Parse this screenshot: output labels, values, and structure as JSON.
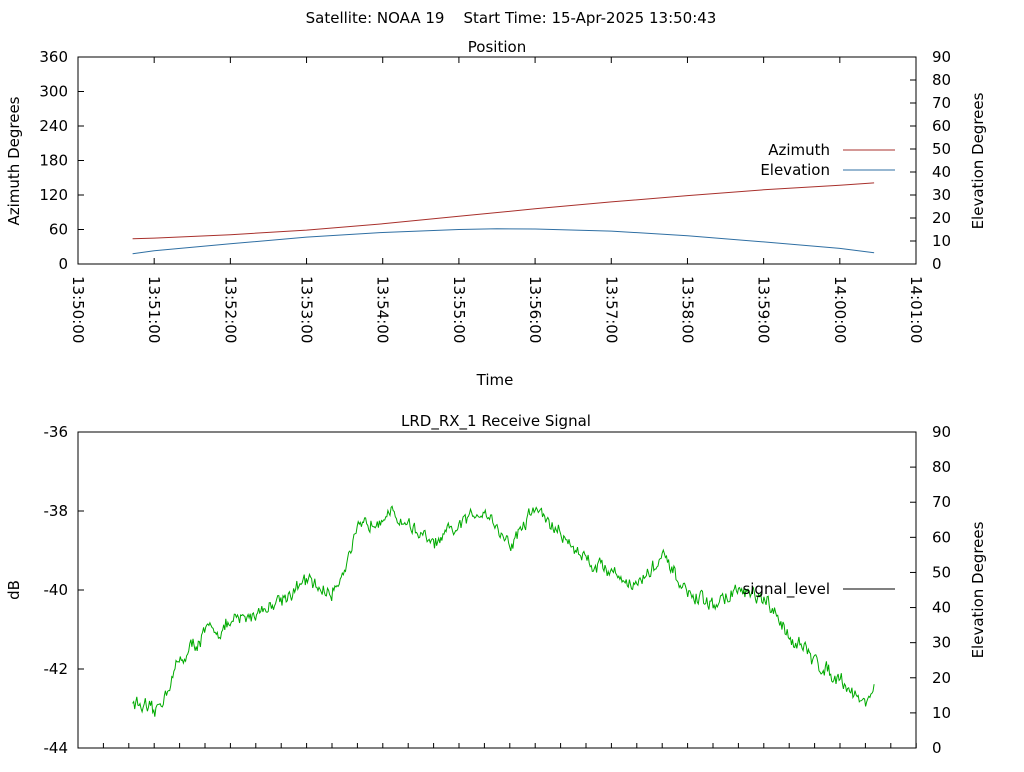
{
  "header": {
    "title": "Satellite: NOAA 19    Start Time: 15-Apr-2025 13:50:43"
  },
  "chart_data": [
    {
      "type": "line",
      "title": "Position",
      "xlabel": "Time",
      "ylabel": "Azimuth Degrees",
      "y2label": "Elevation Degrees",
      "xlim": [
        "13:50:00",
        "14:01:00"
      ],
      "x_ticks": [
        "13:50:00",
        "13:51:00",
        "13:52:00",
        "13:53:00",
        "13:54:00",
        "13:55:00",
        "13:56:00",
        "13:57:00",
        "13:58:00",
        "13:59:00",
        "14:00:00",
        "14:01:00"
      ],
      "ylim": [
        0,
        360
      ],
      "y_ticks": [
        "0",
        "60",
        "120",
        "180",
        "240",
        "300",
        "360"
      ],
      "y2lim": [
        0,
        90
      ],
      "y2_ticks": [
        "0",
        "10",
        "20",
        "30",
        "40",
        "50",
        "60",
        "70",
        "80",
        "90"
      ],
      "legend_position": "right",
      "grid": false,
      "series": [
        {
          "name": "Azimuth",
          "axis": "y",
          "color": "#a8302c",
          "x": [
            "13:50:43",
            "13:51:00",
            "13:52:00",
            "13:53:00",
            "13:54:00",
            "13:55:00",
            "13:56:00",
            "13:57:00",
            "13:58:00",
            "13:59:00",
            "14:00:00",
            "14:00:27"
          ],
          "values": [
            44,
            45,
            51,
            59,
            70,
            83,
            96,
            108,
            119,
            129,
            137,
            141
          ]
        },
        {
          "name": "Elevation",
          "axis": "y2",
          "color": "#2f6fa3",
          "x": [
            "13:50:43",
            "13:51:00",
            "13:52:00",
            "13:53:00",
            "13:54:00",
            "13:55:00",
            "13:55:30",
            "13:56:00",
            "13:57:00",
            "13:58:00",
            "13:59:00",
            "14:00:00",
            "14:00:27"
          ],
          "values": [
            4.5,
            5.8,
            8.8,
            11.7,
            13.7,
            15.0,
            15.3,
            15.2,
            14.3,
            12.3,
            9.6,
            6.8,
            4.9
          ]
        }
      ]
    },
    {
      "type": "line",
      "title": "LRD_RX_1 Receive Signal",
      "xlabel": "",
      "ylabel": "dB",
      "y2label": "Elevation Degrees",
      "xlim": [
        "13:50:00",
        "14:01:00"
      ],
      "ylim": [
        -44,
        -36
      ],
      "y_ticks": [
        "-44",
        "-42",
        "-40",
        "-38",
        "-36"
      ],
      "y2lim": [
        0,
        90
      ],
      "y2_ticks": [
        "0",
        "10",
        "20",
        "30",
        "40",
        "50",
        "60",
        "70",
        "80",
        "90"
      ],
      "legend_position": "right",
      "grid": false,
      "series": [
        {
          "name": "signal_level",
          "axis": "y",
          "color": "#00aa00",
          "legend_color": "#000000",
          "noise": 0.25,
          "x": [
            "13:50:43",
            "13:51:00",
            "13:51:20",
            "13:51:40",
            "13:52:00",
            "13:52:30",
            "13:53:00",
            "13:53:20",
            "13:53:40",
            "13:54:00",
            "13:54:20",
            "13:54:40",
            "13:55:00",
            "13:55:20",
            "13:55:40",
            "13:56:00",
            "13:56:20",
            "13:56:40",
            "13:57:00",
            "13:57:20",
            "13:57:40",
            "13:58:00",
            "13:58:20",
            "13:58:40",
            "13:59:00",
            "13:59:20",
            "13:59:40",
            "14:00:00",
            "14:00:20",
            "14:00:27"
          ],
          "values": [
            -42.8,
            -43.2,
            -41.8,
            -41.1,
            -40.9,
            -40.4,
            -39.8,
            -40.1,
            -38.6,
            -38.0,
            -38.3,
            -38.9,
            -38.4,
            -37.9,
            -38.9,
            -37.9,
            -38.6,
            -39.2,
            -39.5,
            -39.9,
            -39.2,
            -40.1,
            -40.4,
            -40.0,
            -40.3,
            -41.1,
            -41.8,
            -42.2,
            -42.9,
            -42.4
          ]
        }
      ]
    }
  ]
}
